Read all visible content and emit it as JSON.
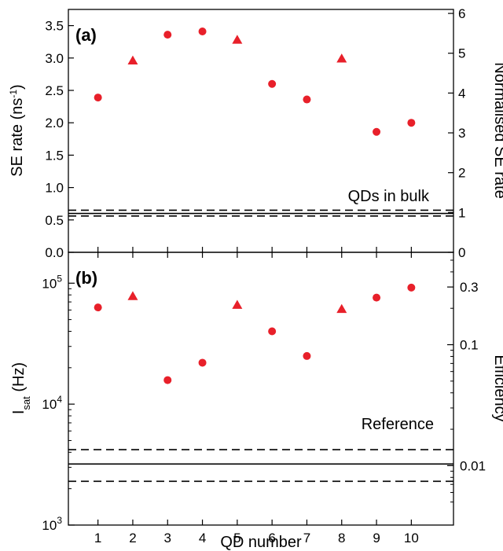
{
  "chart_data": [
    {
      "panel_label": "(a)",
      "type": "scatter",
      "x_categories": [
        "1",
        "2",
        "3",
        "4",
        "5",
        "6",
        "7",
        "8",
        "9",
        "10"
      ],
      "xlabel": "QD number",
      "ylabel": "SE rate (ns",
      "ylabel_sup": "-1",
      "ylabel_close": ")",
      "y2label": "Normalised SE rate",
      "ylim": [
        0,
        3.75
      ],
      "y2lim": [
        0,
        6.1
      ],
      "y_ticks": [
        "0.0",
        "0.5",
        "1.0",
        "1.5",
        "2.0",
        "2.5",
        "3.0",
        "3.5"
      ],
      "y2_ticks": [
        "0",
        "1",
        "2",
        "3",
        "4",
        "5",
        "6"
      ],
      "marker_color": "#e8202a",
      "points": [
        {
          "x": 1,
          "y": 2.39,
          "marker": "circle"
        },
        {
          "x": 2,
          "y": 2.96,
          "marker": "triangle"
        },
        {
          "x": 3,
          "y": 3.36,
          "marker": "circle"
        },
        {
          "x": 4,
          "y": 3.41,
          "marker": "circle"
        },
        {
          "x": 5,
          "y": 3.28,
          "marker": "triangle"
        },
        {
          "x": 6,
          "y": 2.6,
          "marker": "circle"
        },
        {
          "x": 7,
          "y": 2.36,
          "marker": "circle"
        },
        {
          "x": 8,
          "y": 2.99,
          "marker": "triangle"
        },
        {
          "x": 9,
          "y": 1.86,
          "marker": "circle"
        },
        {
          "x": 10,
          "y": 2.0,
          "marker": "circle"
        }
      ],
      "reference_lines": {
        "solid": 0.6,
        "dashed": [
          0.56,
          0.65
        ]
      },
      "annotation": "QDs in bulk"
    },
    {
      "panel_label": "(b)",
      "type": "scatter",
      "y_scale": "log",
      "x_categories": [
        "1",
        "2",
        "3",
        "4",
        "5",
        "6",
        "7",
        "8",
        "9",
        "10"
      ],
      "xlabel": "QD number",
      "ylabel_main": "I",
      "ylabel_sub": "sat",
      "ylabel_rest": " (Hz)",
      "y2label": "Efficiency",
      "ylim": [
        1000,
        180000
      ],
      "y_ticks": [
        {
          "value": 1000,
          "base": "10",
          "exp": "3"
        },
        {
          "value": 10000,
          "base": "10",
          "exp": "4"
        },
        {
          "value": 100000,
          "base": "10",
          "exp": "5"
        }
      ],
      "y2_ticks": [
        {
          "label": "0.01",
          "value_left": 3100
        },
        {
          "label": "0.1",
          "value_left": 31000
        },
        {
          "label": "0.3",
          "value_left": 93000
        }
      ],
      "marker_color": "#e8202a",
      "points": [
        {
          "x": 1,
          "y": 63000,
          "marker": "circle"
        },
        {
          "x": 2,
          "y": 78000,
          "marker": "triangle"
        },
        {
          "x": 3,
          "y": 15800,
          "marker": "circle"
        },
        {
          "x": 4,
          "y": 22000,
          "marker": "circle"
        },
        {
          "x": 5,
          "y": 66000,
          "marker": "triangle"
        },
        {
          "x": 6,
          "y": 40000,
          "marker": "circle"
        },
        {
          "x": 7,
          "y": 25000,
          "marker": "circle"
        },
        {
          "x": 8,
          "y": 61000,
          "marker": "triangle"
        },
        {
          "x": 9,
          "y": 76000,
          "marker": "circle"
        },
        {
          "x": 10,
          "y": 92000,
          "marker": "circle"
        }
      ],
      "reference_lines": {
        "solid": 3200,
        "dashed": [
          2300,
          4200
        ]
      },
      "annotation": "Reference"
    }
  ]
}
